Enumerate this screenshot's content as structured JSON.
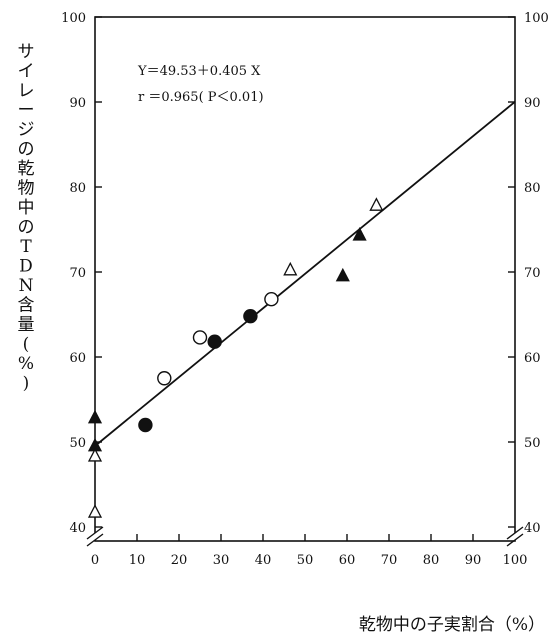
{
  "chart_data": {
    "type": "scatter",
    "title": "",
    "xlabel": "乾物中の子実割合（%）",
    "ylabel": "サイレージの乾物中のTDN含量(%)",
    "xlim": [
      0,
      100
    ],
    "ylim": [
      40,
      100
    ],
    "y_axis_break": true,
    "x_ticks": [
      0,
      10,
      20,
      30,
      40,
      50,
      60,
      70,
      80,
      90,
      100
    ],
    "y_ticks": [
      40,
      50,
      60,
      70,
      80,
      90,
      100
    ],
    "grid": false,
    "legend": "none",
    "markers": {
      "filled_circle": {
        "shape": "circle",
        "filled": true
      },
      "open_circle": {
        "shape": "circle",
        "filled": false
      },
      "filled_triangle": {
        "shape": "triangle",
        "filled": true
      },
      "open_triangle": {
        "shape": "triangle",
        "filled": false
      }
    },
    "series": [
      {
        "marker": "filled_circle",
        "points": [
          {
            "x": 12,
            "y": 52.0
          },
          {
            "x": 28.5,
            "y": 61.8
          },
          {
            "x": 37,
            "y": 64.8
          }
        ]
      },
      {
        "marker": "open_circle",
        "points": [
          {
            "x": 16.5,
            "y": 57.5
          },
          {
            "x": 25,
            "y": 62.3
          },
          {
            "x": 42,
            "y": 66.8
          }
        ]
      },
      {
        "marker": "filled_triangle",
        "points": [
          {
            "x": 0,
            "y": 52.8
          },
          {
            "x": 0,
            "y": 49.5
          },
          {
            "x": 59,
            "y": 69.5
          },
          {
            "x": 63,
            "y": 74.3
          }
        ]
      },
      {
        "marker": "open_triangle",
        "points": [
          {
            "x": 0,
            "y": 48.3
          },
          {
            "x": 0,
            "y": 41.7
          },
          {
            "x": 46.5,
            "y": 70.2
          },
          {
            "x": 67,
            "y": 77.8
          }
        ]
      }
    ],
    "regression": {
      "intercept": 49.53,
      "slope": 0.405,
      "x_range": [
        0,
        100
      ],
      "equation_label": "Y＝49.53＋0.405 X",
      "r_label": "r ＝0.965( P＜0.01)"
    }
  }
}
